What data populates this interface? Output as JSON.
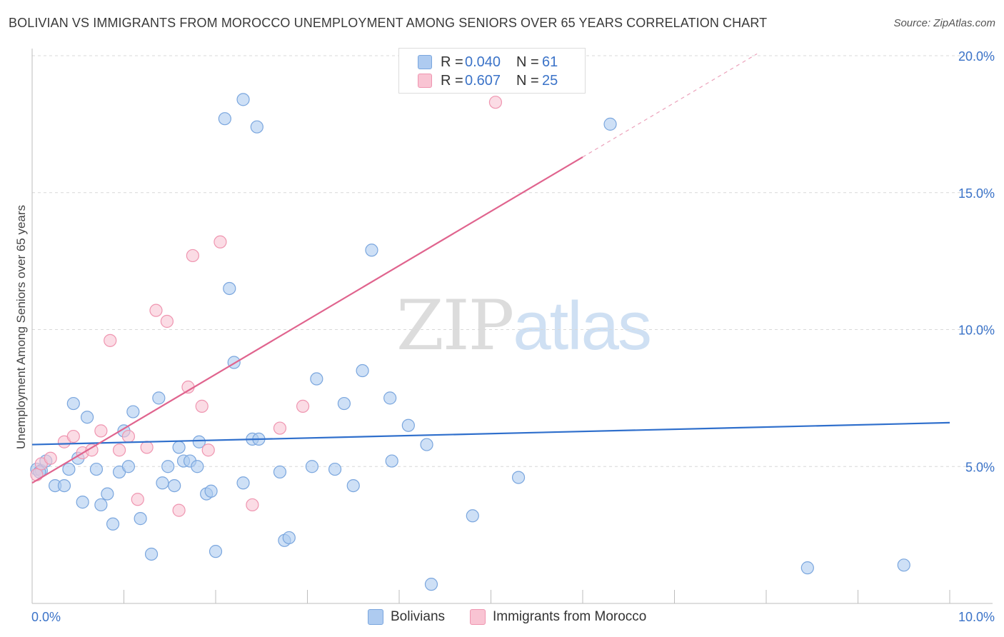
{
  "title": "BOLIVIAN VS IMMIGRANTS FROM MOROCCO UNEMPLOYMENT AMONG SENIORS OVER 65 YEARS CORRELATION CHART",
  "source": "Source: ZipAtlas.com",
  "watermark": {
    "zip": "ZIP",
    "atlas": "atlas"
  },
  "legend": {
    "rows": [
      {
        "r_label": "R =",
        "r_value": "0.040",
        "n_label": "N =",
        "n_value": "61",
        "color": "#aecbf0",
        "border": "#7aa6de"
      },
      {
        "r_label": "R =",
        "r_value": "0.607",
        "n_label": "N =",
        "n_value": "25",
        "color": "#f9c4d3",
        "border": "#ef95b0"
      }
    ]
  },
  "bottom_legend": {
    "bolivians": "Bolivians",
    "morocco": "Immigrants from Morocco"
  },
  "chart_data": {
    "type": "scatter",
    "title": "BOLIVIAN VS IMMIGRANTS FROM MOROCCO UNEMPLOYMENT AMONG SENIORS OVER 65 YEARS CORRELATION CHART",
    "xlabel": "",
    "ylabel": "Unemployment Among Seniors over 65 years",
    "xlim": [
      0,
      10
    ],
    "ylim": [
      0,
      20
    ],
    "x_tick_labels": [
      {
        "value": 0,
        "label": "0.0%"
      },
      {
        "value": 10,
        "label": "10.0%"
      }
    ],
    "y_tick_labels": [
      {
        "value": 5,
        "label": "5.0%"
      },
      {
        "value": 10,
        "label": "10.0%"
      },
      {
        "value": 15,
        "label": "15.0%"
      },
      {
        "value": 20,
        "label": "20.0%"
      }
    ],
    "grid": true,
    "series": [
      {
        "name": "Bolivians",
        "color": "#aecbf0",
        "stroke": "#7aa6de",
        "trend_color": "#2f6fcc",
        "trend": {
          "x0": 0,
          "y0": 5.8,
          "x1": 10,
          "y1": 6.6,
          "dashed_to": 10
        },
        "points": [
          [
            0.05,
            4.9
          ],
          [
            0.1,
            4.85
          ],
          [
            0.15,
            5.2
          ],
          [
            0.25,
            4.3
          ],
          [
            0.35,
            4.3
          ],
          [
            0.4,
            4.9
          ],
          [
            0.45,
            7.3
          ],
          [
            0.5,
            5.3
          ],
          [
            0.55,
            3.7
          ],
          [
            0.6,
            6.8
          ],
          [
            0.7,
            4.9
          ],
          [
            0.75,
            3.6
          ],
          [
            0.82,
            4.0
          ],
          [
            0.88,
            2.9
          ],
          [
            0.95,
            4.8
          ],
          [
            1.0,
            6.3
          ],
          [
            1.05,
            5.0
          ],
          [
            1.1,
            7.0
          ],
          [
            1.18,
            3.1
          ],
          [
            1.3,
            1.8
          ],
          [
            1.38,
            7.5
          ],
          [
            1.42,
            4.4
          ],
          [
            1.48,
            5.0
          ],
          [
            1.55,
            4.3
          ],
          [
            1.6,
            5.7
          ],
          [
            1.65,
            5.2
          ],
          [
            1.72,
            5.2
          ],
          [
            1.8,
            5.0
          ],
          [
            1.82,
            5.9
          ],
          [
            1.9,
            4.0
          ],
          [
            1.95,
            4.1
          ],
          [
            2.0,
            1.9
          ],
          [
            2.1,
            17.7
          ],
          [
            2.15,
            11.5
          ],
          [
            2.2,
            8.8
          ],
          [
            2.3,
            4.4
          ],
          [
            2.3,
            18.4
          ],
          [
            2.4,
            6.0
          ],
          [
            2.45,
            17.4
          ],
          [
            2.47,
            6.0
          ],
          [
            2.7,
            4.8
          ],
          [
            2.75,
            2.3
          ],
          [
            2.8,
            2.4
          ],
          [
            3.05,
            5.0
          ],
          [
            3.1,
            8.2
          ],
          [
            3.3,
            4.9
          ],
          [
            3.4,
            7.3
          ],
          [
            3.5,
            4.3
          ],
          [
            3.6,
            8.5
          ],
          [
            3.7,
            12.9
          ],
          [
            3.9,
            7.5
          ],
          [
            3.92,
            5.2
          ],
          [
            4.1,
            6.5
          ],
          [
            4.3,
            5.8
          ],
          [
            4.35,
            0.7
          ],
          [
            4.8,
            3.2
          ],
          [
            5.3,
            4.6
          ],
          [
            6.3,
            17.5
          ],
          [
            8.45,
            1.3
          ],
          [
            9.5,
            1.4
          ],
          [
            0.08,
            4.8
          ]
        ]
      },
      {
        "name": "Immigrants from Morocco",
        "color": "#f9c4d3",
        "stroke": "#ef95b0",
        "trend_color": "#e0648e",
        "trend": {
          "x0": 0,
          "y0": 4.4,
          "x1": 6.0,
          "y1": 16.3,
          "dashed_to": 7.9
        },
        "points": [
          [
            0.05,
            4.7
          ],
          [
            0.1,
            5.1
          ],
          [
            0.2,
            5.3
          ],
          [
            0.35,
            5.9
          ],
          [
            0.45,
            6.1
          ],
          [
            0.55,
            5.5
          ],
          [
            0.65,
            5.6
          ],
          [
            0.75,
            6.3
          ],
          [
            0.85,
            9.6
          ],
          [
            0.95,
            5.6
          ],
          [
            1.05,
            6.1
          ],
          [
            1.15,
            3.8
          ],
          [
            1.25,
            5.7
          ],
          [
            1.35,
            10.7
          ],
          [
            1.47,
            10.3
          ],
          [
            1.6,
            3.4
          ],
          [
            1.7,
            7.9
          ],
          [
            1.75,
            12.7
          ],
          [
            1.85,
            7.2
          ],
          [
            1.92,
            5.6
          ],
          [
            2.05,
            13.2
          ],
          [
            2.4,
            3.6
          ],
          [
            2.7,
            6.4
          ],
          [
            2.95,
            7.2
          ],
          [
            5.05,
            18.3
          ]
        ]
      }
    ]
  }
}
